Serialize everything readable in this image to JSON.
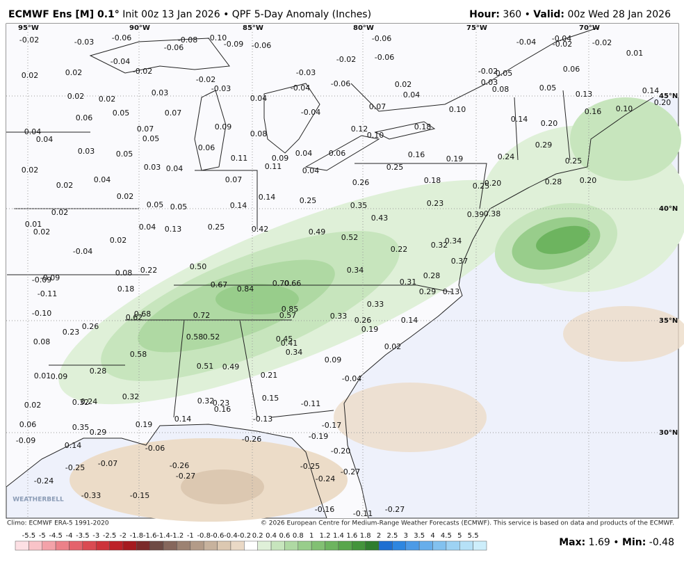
{
  "header": {
    "title": "ECMWF Ens [M] 0.1°",
    "subtitle": "Init 00z 13 Jan 2026 • QPF 5-Day Anomaly (Inches)",
    "hour_label": "Hour:",
    "hour_value": "360 •",
    "valid_label": "Valid:",
    "valid_value": "00z Wed 28 Jan 2026"
  },
  "map": {
    "lon_labels": [
      "95°W",
      "90°W",
      "85°W",
      "80°W",
      "75°W",
      "70°W"
    ],
    "lat_labels": [
      "45°N",
      "40°N",
      "35°N",
      "30°N"
    ],
    "watermark": "WEATHERBELL",
    "values": [
      "-0.02",
      "-0.03",
      "-0.06",
      "-0.08",
      "-0.10",
      "-0.09",
      "-0.06",
      "-0.06",
      "-0.06",
      "-0.02",
      "-0.06",
      "-0.04",
      "-0.04",
      "-0.02",
      "-0.02",
      "0.01",
      "-0.04",
      "-0.02",
      "0.02",
      "0.02",
      "-0.03",
      "-0.02",
      "-0.03",
      "-0.04",
      "-0.06",
      "0.02",
      "0.04",
      "-0.02",
      "0.05",
      "0.03",
      "0.08",
      "0.06",
      "0.05",
      "0.13",
      "0.14",
      "0.20",
      "0.03",
      "0.02",
      "0.02",
      "0.04",
      "0.07",
      "0.10",
      "0.16",
      "0.10",
      "0.05",
      "0.07",
      "0.06",
      "-0.04",
      "0.09",
      "0.08",
      "0.12",
      "0.10",
      "0.18",
      "0.14",
      "0.20",
      "0.07",
      "0.05",
      "0.04",
      "0.04",
      "0.03",
      "0.05",
      "0.06",
      "0.11",
      "0.09",
      "0.04",
      "0.06",
      "0.16",
      "0.19",
      "0.24",
      "0.29",
      "0.25",
      "0.03",
      "0.04",
      "0.11",
      "0.04",
      "0.25",
      "0.02",
      "0.04",
      "0.07",
      "0.26",
      "0.18",
      "0.25",
      "0.20",
      "0.28",
      "0.20",
      "0.02",
      "0.02",
      "0.14",
      "0.25",
      "0.35",
      "0.23",
      "0.05",
      "0.05",
      "0.14",
      "0.02",
      "0.39",
      "0.38",
      "0.01",
      "0.02",
      "0.04",
      "0.13",
      "0.25",
      "0.42",
      "0.43",
      "0.49",
      "0.52",
      "0.34",
      "0.32",
      "0.02",
      "-0.04",
      "0.22",
      "0.37",
      "0.50",
      "0.34",
      "0.08",
      "0.22",
      "0.28",
      "-0.09",
      "-0.09",
      "0.18",
      "0.67",
      "0.84",
      "0.70",
      "0.66",
      "0.31",
      "0.29",
      "0.13",
      "-0.11",
      "0.33",
      "0.85",
      "0.68",
      "0.62",
      "0.72",
      "0.57",
      "0.33",
      "0.26",
      "0.14",
      "-0.10",
      "0.26",
      "0.23",
      "0.19",
      "0.58",
      "0.52",
      "0.45",
      "0.41",
      "0.34",
      "0.08",
      "0.02",
      "0.58",
      "0.09",
      "0.51",
      "0.49",
      "0.28",
      "0.21",
      "0.01",
      "0.09",
      "-0.04",
      "0.32",
      "0.15",
      "0.24",
      "0.32",
      "0.32",
      "0.23",
      "0.16",
      "-0.11",
      "0.02",
      "0.06",
      "0.35",
      "0.29",
      "0.19",
      "0.14",
      "-0.13",
      "-0.17",
      "-0.19",
      "-0.09",
      "0.14",
      "-0.06",
      "-0.26",
      "-0.20",
      "-0.25",
      "-0.07",
      "-0.26",
      "-0.27",
      "-0.25",
      "-0.27",
      "-0.24",
      "-0.24",
      "-0.33",
      "-0.15",
      "-0.16",
      "-0.11",
      "-0.27"
    ]
  },
  "footer": {
    "climo": "Climo: ECMWF ERA-5 1991-2020",
    "copyright": "© 2026 European Centre for Medium-Range Weather Forecasts (ECMWF). This service is based on data and products of the ECMWF.",
    "scale_labels": [
      -5.5,
      -5,
      -4.5,
      -4,
      -3.5,
      -3,
      -2.5,
      -2,
      -1.8,
      -1.6,
      -1.4,
      -1.2,
      -1,
      -0.8,
      -0.6,
      -0.4,
      -0.2,
      0.2,
      0.4,
      0.6,
      0.8,
      1,
      1.2,
      1.4,
      1.6,
      1.8,
      2,
      2.5,
      3,
      3.5,
      4,
      4.5,
      5,
      5.5
    ],
    "max_label": "Max:",
    "max_value": "1.69 •",
    "min_label": "Min:",
    "min_value": "-0.48"
  }
}
